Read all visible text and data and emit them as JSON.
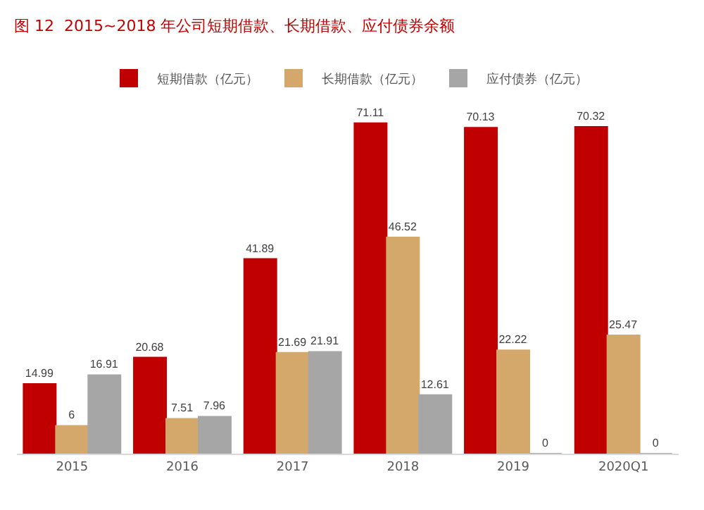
{
  "chart_data": {
    "type": "bar",
    "title": "图 12  2015~2018 年公司短期借款、长期借款、应付债券余额",
    "categories": [
      "2015",
      "2016",
      "2017",
      "2018",
      "2019",
      "2020Q1"
    ],
    "series": [
      {
        "name": "短期借款（亿元）",
        "color": "#c00000",
        "values": [
          14.99,
          20.68,
          41.89,
          71.11,
          70.13,
          70.32
        ]
      },
      {
        "name": "长期借款（亿元）",
        "color": "#d4a86a",
        "values": [
          6,
          7.51,
          21.69,
          46.52,
          22.22,
          25.47
        ]
      },
      {
        "name": "应付债券（亿元）",
        "color": "#a6a6a6",
        "values": [
          16.91,
          7.96,
          21.91,
          12.61,
          0,
          0
        ]
      }
    ],
    "data_labels": true,
    "legend": "top"
  }
}
